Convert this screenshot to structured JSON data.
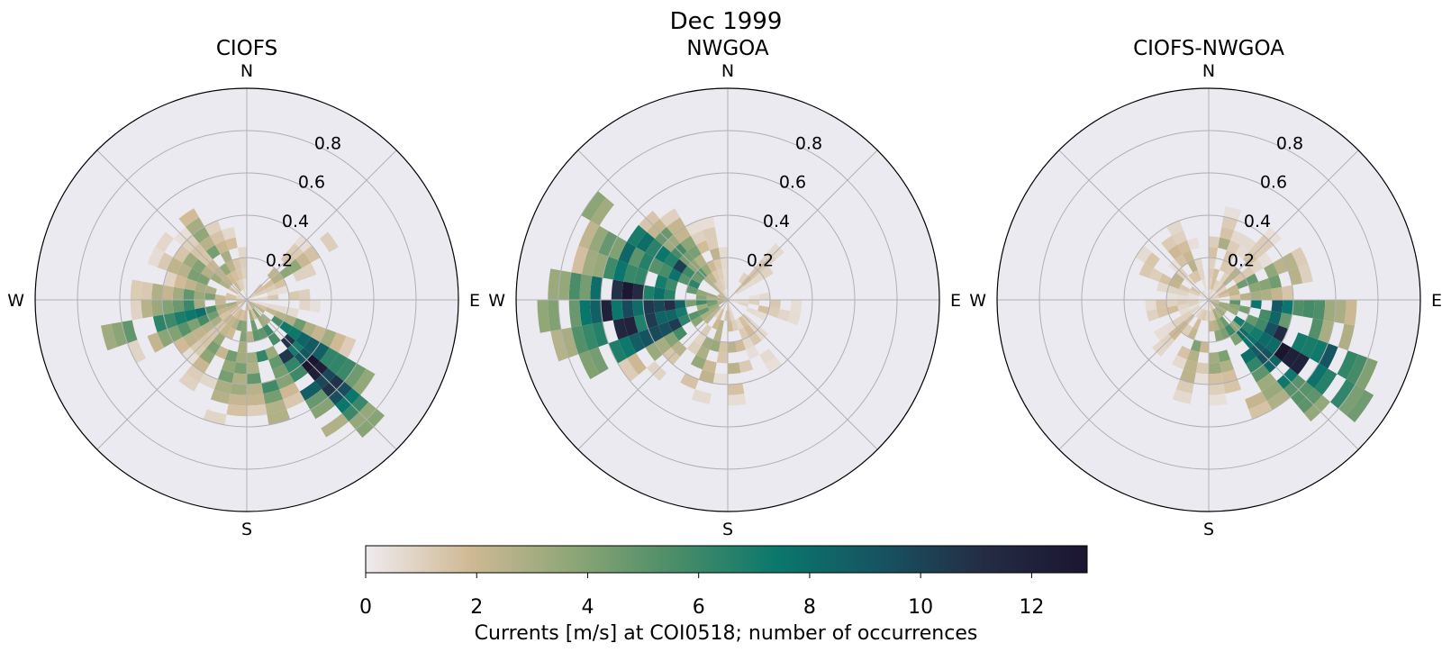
{
  "figure": {
    "suptitle": "Dec 1999",
    "colorbar": {
      "label": "Currents [m/s] at COI0518; number of occurrences",
      "min": 0,
      "max": 13,
      "ticks": [
        "0",
        "2",
        "4",
        "6",
        "8",
        "10",
        "12"
      ],
      "tick_values": [
        0,
        2,
        4,
        6,
        8,
        10,
        12
      ],
      "colormap_stops": [
        "#eeebee",
        "#d0b995",
        "#8ea676",
        "#4a8d68",
        "#0a776c",
        "#165361",
        "#242c44",
        "#1b1530"
      ]
    },
    "colors": {
      "axes_background": "#ebeaf1",
      "grid": "#b0b0b0"
    }
  },
  "chart_data": [
    {
      "type": "heatmap",
      "subtype": "polar-2d-histogram",
      "title": "CIOFS",
      "direction_labels": [
        "N",
        "E",
        "S",
        "W"
      ],
      "radial_ticks": [
        "0.2",
        "0.4",
        "0.6",
        "0.8"
      ],
      "radial_tick_values": [
        0.2,
        0.4,
        0.6,
        0.8
      ],
      "rlim": [
        0,
        1.0
      ],
      "direction_bins_deg": 10,
      "speed_bin_edges": [
        0.0,
        0.05,
        0.1,
        0.15,
        0.2,
        0.25,
        0.3,
        0.35,
        0.4,
        0.45,
        0.5,
        0.55,
        0.6,
        0.65,
        0.7,
        0.75,
        0.8,
        0.85,
        0.9,
        0.95,
        1.0
      ],
      "grid": true,
      "peak_counts": [
        {
          "bearing_deg": 55,
          "count": 4
        },
        {
          "bearing_deg": 90,
          "count": 2
        },
        {
          "bearing_deg": 125,
          "count": 9
        },
        {
          "bearing_deg": 135,
          "count": 12
        },
        {
          "bearing_deg": 145,
          "count": 10
        },
        {
          "bearing_deg": 165,
          "count": 7
        },
        {
          "bearing_deg": 180,
          "count": 7
        },
        {
          "bearing_deg": 195,
          "count": 6
        },
        {
          "bearing_deg": 215,
          "count": 4
        },
        {
          "bearing_deg": 245,
          "count": 6
        },
        {
          "bearing_deg": 255,
          "count": 10
        },
        {
          "bearing_deg": 275,
          "count": 5
        },
        {
          "bearing_deg": 300,
          "count": 5
        },
        {
          "bearing_deg": 325,
          "count": 5
        },
        {
          "bearing_deg": 340,
          "count": 3
        }
      ]
    },
    {
      "type": "heatmap",
      "subtype": "polar-2d-histogram",
      "title": "NWGOA",
      "direction_labels": [
        "N",
        "E",
        "S",
        "W"
      ],
      "radial_ticks": [
        "0.2",
        "0.4",
        "0.6",
        "0.8"
      ],
      "radial_tick_values": [
        0.2,
        0.4,
        0.6,
        0.8
      ],
      "rlim": [
        0,
        1.0
      ],
      "direction_bins_deg": 10,
      "speed_bin_edges": [
        0.0,
        0.05,
        0.1,
        0.15,
        0.2,
        0.25,
        0.3,
        0.35,
        0.4,
        0.45,
        0.5,
        0.55,
        0.6,
        0.65,
        0.7,
        0.75,
        0.8,
        0.85,
        0.9,
        0.95,
        1.0
      ],
      "grid": true,
      "peak_counts": [
        {
          "bearing_deg": 45,
          "count": 2
        },
        {
          "bearing_deg": 100,
          "count": 2
        },
        {
          "bearing_deg": 145,
          "count": 2
        },
        {
          "bearing_deg": 175,
          "count": 4
        },
        {
          "bearing_deg": 200,
          "count": 5
        },
        {
          "bearing_deg": 230,
          "count": 5
        },
        {
          "bearing_deg": 245,
          "count": 11
        },
        {
          "bearing_deg": 255,
          "count": 12
        },
        {
          "bearing_deg": 265,
          "count": 13
        },
        {
          "bearing_deg": 275,
          "count": 12
        },
        {
          "bearing_deg": 290,
          "count": 12
        },
        {
          "bearing_deg": 305,
          "count": 11
        },
        {
          "bearing_deg": 320,
          "count": 6
        },
        {
          "bearing_deg": 340,
          "count": 3
        }
      ]
    },
    {
      "type": "heatmap",
      "subtype": "polar-2d-histogram",
      "title": "CIOFS-NWGOA",
      "direction_labels": [
        "N",
        "E",
        "S",
        "W"
      ],
      "radial_ticks": [
        "0.2",
        "0.4",
        "0.6",
        "0.8"
      ],
      "radial_tick_values": [
        0.2,
        0.4,
        0.6,
        0.8
      ],
      "rlim": [
        0,
        1.0
      ],
      "direction_bins_deg": 10,
      "speed_bin_edges": [
        0.0,
        0.05,
        0.1,
        0.15,
        0.2,
        0.25,
        0.3,
        0.35,
        0.4,
        0.45,
        0.5,
        0.55,
        0.6,
        0.65,
        0.7,
        0.75,
        0.8,
        0.85,
        0.9,
        0.95,
        1.0
      ],
      "grid": true,
      "peak_counts": [
        {
          "bearing_deg": 15,
          "count": 3
        },
        {
          "bearing_deg": 45,
          "count": 3
        },
        {
          "bearing_deg": 70,
          "count": 6
        },
        {
          "bearing_deg": 100,
          "count": 11
        },
        {
          "bearing_deg": 115,
          "count": 12
        },
        {
          "bearing_deg": 125,
          "count": 13
        },
        {
          "bearing_deg": 135,
          "count": 10
        },
        {
          "bearing_deg": 150,
          "count": 9
        },
        {
          "bearing_deg": 170,
          "count": 5
        },
        {
          "bearing_deg": 195,
          "count": 4
        },
        {
          "bearing_deg": 225,
          "count": 2
        },
        {
          "bearing_deg": 260,
          "count": 2
        },
        {
          "bearing_deg": 300,
          "count": 3
        },
        {
          "bearing_deg": 330,
          "count": 3
        }
      ]
    }
  ]
}
